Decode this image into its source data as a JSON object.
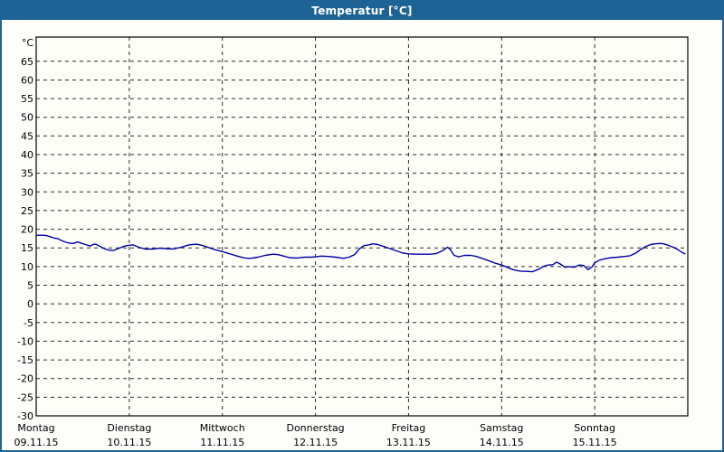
{
  "window": {
    "title": "Temperatur [°C]",
    "titlebar_color": "#1E6396",
    "border_color": "#1E6396",
    "background_color": "#FDFEFB"
  },
  "chart_data": {
    "type": "line",
    "title": "Temperatur [°C]",
    "ylabel": "°C",
    "xlabel": "",
    "y_min": -30,
    "y_max": 65,
    "y_tick_step": 5,
    "y_ticks": [
      65,
      60,
      55,
      50,
      45,
      40,
      35,
      30,
      25,
      20,
      15,
      10,
      5,
      0,
      -5,
      -10,
      -15,
      -20,
      -25,
      -30
    ],
    "x_range_days": [
      0,
      7
    ],
    "grid": {
      "horizontal": "dashed",
      "vertical": "dashed-at-day-boundaries",
      "border": "solid"
    },
    "legend": "none",
    "line_color": "#0000A8",
    "axis_color": "#000000",
    "grid_color": "#2B2B2B",
    "plot_bg": "#FDFEF8",
    "label_color": "#000000",
    "days": [
      {
        "name": "Montag",
        "date": "09.11.15"
      },
      {
        "name": "Dienstag",
        "date": "10.11.15"
      },
      {
        "name": "Mittwoch",
        "date": "11.11.15"
      },
      {
        "name": "Donnerstag",
        "date": "12.11.15"
      },
      {
        "name": "Freitag",
        "date": "13.11.15"
      },
      {
        "name": "Samstag",
        "date": "14.11.15"
      },
      {
        "name": "Sonntag",
        "date": "15.11.15"
      }
    ],
    "series": [
      {
        "name": "Temperatur",
        "unit": "°C",
        "x_unit": "days_from_monday_start",
        "points": [
          [
            0.0,
            18.4
          ],
          [
            0.07,
            18.4
          ],
          [
            0.11,
            18.3
          ],
          [
            0.16,
            17.9
          ],
          [
            0.2,
            17.6
          ],
          [
            0.23,
            17.5
          ],
          [
            0.27,
            17.0
          ],
          [
            0.32,
            16.5
          ],
          [
            0.36,
            16.3
          ],
          [
            0.4,
            16.2
          ],
          [
            0.45,
            16.6
          ],
          [
            0.49,
            16.2
          ],
          [
            0.53,
            15.9
          ],
          [
            0.58,
            15.5
          ],
          [
            0.61,
            15.9
          ],
          [
            0.64,
            16.0
          ],
          [
            0.68,
            15.5
          ],
          [
            0.73,
            14.8
          ],
          [
            0.78,
            14.4
          ],
          [
            0.83,
            14.3
          ],
          [
            0.89,
            14.9
          ],
          [
            0.95,
            15.5
          ],
          [
            1.0,
            15.7
          ],
          [
            1.04,
            15.8
          ],
          [
            1.1,
            15.2
          ],
          [
            1.17,
            14.7
          ],
          [
            1.25,
            14.7
          ],
          [
            1.32,
            14.9
          ],
          [
            1.4,
            14.8
          ],
          [
            1.47,
            14.7
          ],
          [
            1.56,
            15.2
          ],
          [
            1.64,
            15.8
          ],
          [
            1.72,
            16.0
          ],
          [
            1.78,
            15.7
          ],
          [
            1.84,
            15.2
          ],
          [
            1.91,
            14.6
          ],
          [
            2.0,
            14.0
          ],
          [
            2.08,
            13.4
          ],
          [
            2.16,
            12.8
          ],
          [
            2.24,
            12.3
          ],
          [
            2.3,
            12.2
          ],
          [
            2.38,
            12.5
          ],
          [
            2.46,
            13.0
          ],
          [
            2.54,
            13.3
          ],
          [
            2.6,
            13.2
          ],
          [
            2.66,
            12.8
          ],
          [
            2.72,
            12.4
          ],
          [
            2.8,
            12.3
          ],
          [
            2.88,
            12.5
          ],
          [
            2.95,
            12.5
          ],
          [
            3.0,
            12.6
          ],
          [
            3.06,
            12.8
          ],
          [
            3.14,
            12.7
          ],
          [
            3.22,
            12.5
          ],
          [
            3.3,
            12.2
          ],
          [
            3.36,
            12.5
          ],
          [
            3.42,
            13.2
          ],
          [
            3.47,
            14.7
          ],
          [
            3.52,
            15.6
          ],
          [
            3.57,
            15.8
          ],
          [
            3.62,
            16.1
          ],
          [
            3.67,
            15.9
          ],
          [
            3.73,
            15.4
          ],
          [
            3.8,
            14.8
          ],
          [
            3.87,
            14.2
          ],
          [
            3.94,
            13.6
          ],
          [
            4.0,
            13.4
          ],
          [
            4.08,
            13.3
          ],
          [
            4.16,
            13.3
          ],
          [
            4.24,
            13.3
          ],
          [
            4.3,
            13.5
          ],
          [
            4.37,
            14.3
          ],
          [
            4.42,
            15.2
          ],
          [
            4.45,
            14.5
          ],
          [
            4.49,
            13.0
          ],
          [
            4.54,
            12.6
          ],
          [
            4.6,
            13.0
          ],
          [
            4.67,
            13.0
          ],
          [
            4.73,
            12.7
          ],
          [
            4.8,
            12.1
          ],
          [
            4.87,
            11.5
          ],
          [
            4.93,
            10.9
          ],
          [
            5.0,
            10.4
          ],
          [
            5.06,
            9.8
          ],
          [
            5.12,
            9.2
          ],
          [
            5.19,
            8.8
          ],
          [
            5.26,
            8.7
          ],
          [
            5.33,
            8.6
          ],
          [
            5.4,
            9.3
          ],
          [
            5.45,
            10.1
          ],
          [
            5.5,
            10.4
          ],
          [
            5.55,
            10.5
          ],
          [
            5.59,
            11.2
          ],
          [
            5.63,
            10.7
          ],
          [
            5.68,
            9.8
          ],
          [
            5.73,
            10.0
          ],
          [
            5.78,
            9.8
          ],
          [
            5.83,
            10.4
          ],
          [
            5.88,
            10.3
          ],
          [
            5.93,
            9.2
          ],
          [
            5.97,
            9.9
          ],
          [
            6.0,
            11.0
          ],
          [
            6.05,
            11.7
          ],
          [
            6.11,
            12.1
          ],
          [
            6.18,
            12.4
          ],
          [
            6.25,
            12.5
          ],
          [
            6.32,
            12.7
          ],
          [
            6.38,
            12.9
          ],
          [
            6.44,
            13.6
          ],
          [
            6.5,
            14.7
          ],
          [
            6.55,
            15.4
          ],
          [
            6.6,
            15.9
          ],
          [
            6.65,
            16.1
          ],
          [
            6.7,
            16.2
          ],
          [
            6.74,
            16.1
          ],
          [
            6.78,
            15.8
          ],
          [
            6.82,
            15.4
          ],
          [
            6.86,
            15.0
          ],
          [
            6.9,
            14.4
          ],
          [
            6.94,
            13.8
          ],
          [
            6.97,
            13.4
          ]
        ]
      }
    ]
  }
}
